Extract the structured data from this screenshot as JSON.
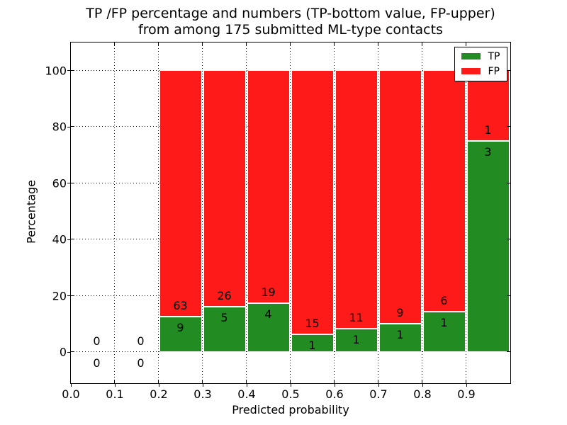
{
  "chart_data": {
    "type": "bar",
    "stacked": true,
    "title_lines": [
      "TP /FP percentage and numbers (TP-bottom value, FP-upper)",
      "from among 175 submitted ML-type contacts"
    ],
    "title": "TP /FP percentage and numbers (TP-bottom value, FP-upper)\nfrom among 175 submitted ML-type contacts",
    "xlabel": "Predicted probability",
    "ylabel": "Percentage",
    "xlim": [
      0.0,
      1.0
    ],
    "ylim": [
      -11,
      110
    ],
    "x_ticks": [
      0.0,
      0.1,
      0.2,
      0.3,
      0.4,
      0.5,
      0.6,
      0.7,
      0.8,
      0.9
    ],
    "x_tick_labels": [
      "0.0",
      "0.1",
      "0.2",
      "0.3",
      "0.4",
      "0.5",
      "0.6",
      "0.7",
      "0.8",
      "0.9"
    ],
    "y_ticks": [
      0,
      20,
      40,
      60,
      80,
      100
    ],
    "y_tick_labels": [
      "0",
      "20",
      "40",
      "60",
      "80",
      "100"
    ],
    "grid": "dotted",
    "total_submitted_contacts": 175,
    "colors": {
      "tp": "#228b22",
      "fp": "#ff1a1a"
    },
    "legend": {
      "position": "upper-right",
      "entries": [
        {
          "label": "TP",
          "color": "#228b22"
        },
        {
          "label": "FP",
          "color": "#ff1a1a"
        }
      ]
    },
    "series": [
      {
        "name": "TP",
        "role": "bottom segment, percent of bin total"
      },
      {
        "name": "FP",
        "role": "upper segment, percent of bin total"
      }
    ],
    "bins": [
      {
        "x_start": 0.0,
        "x_end": 0.1,
        "tp": 0,
        "fp": 0
      },
      {
        "x_start": 0.1,
        "x_end": 0.2,
        "tp": 0,
        "fp": 0
      },
      {
        "x_start": 0.2,
        "x_end": 0.3,
        "tp": 9,
        "fp": 63
      },
      {
        "x_start": 0.3,
        "x_end": 0.4,
        "tp": 5,
        "fp": 26
      },
      {
        "x_start": 0.4,
        "x_end": 0.5,
        "tp": 4,
        "fp": 19
      },
      {
        "x_start": 0.5,
        "x_end": 0.6,
        "tp": 1,
        "fp": 15
      },
      {
        "x_start": 0.6,
        "x_end": 0.7,
        "tp": 1,
        "fp": 11
      },
      {
        "x_start": 0.7,
        "x_end": 0.8,
        "tp": 1,
        "fp": 9
      },
      {
        "x_start": 0.8,
        "x_end": 0.9,
        "tp": 1,
        "fp": 6
      },
      {
        "x_start": 0.9,
        "x_end": 1.0,
        "tp": 3,
        "fp": 1
      }
    ]
  }
}
